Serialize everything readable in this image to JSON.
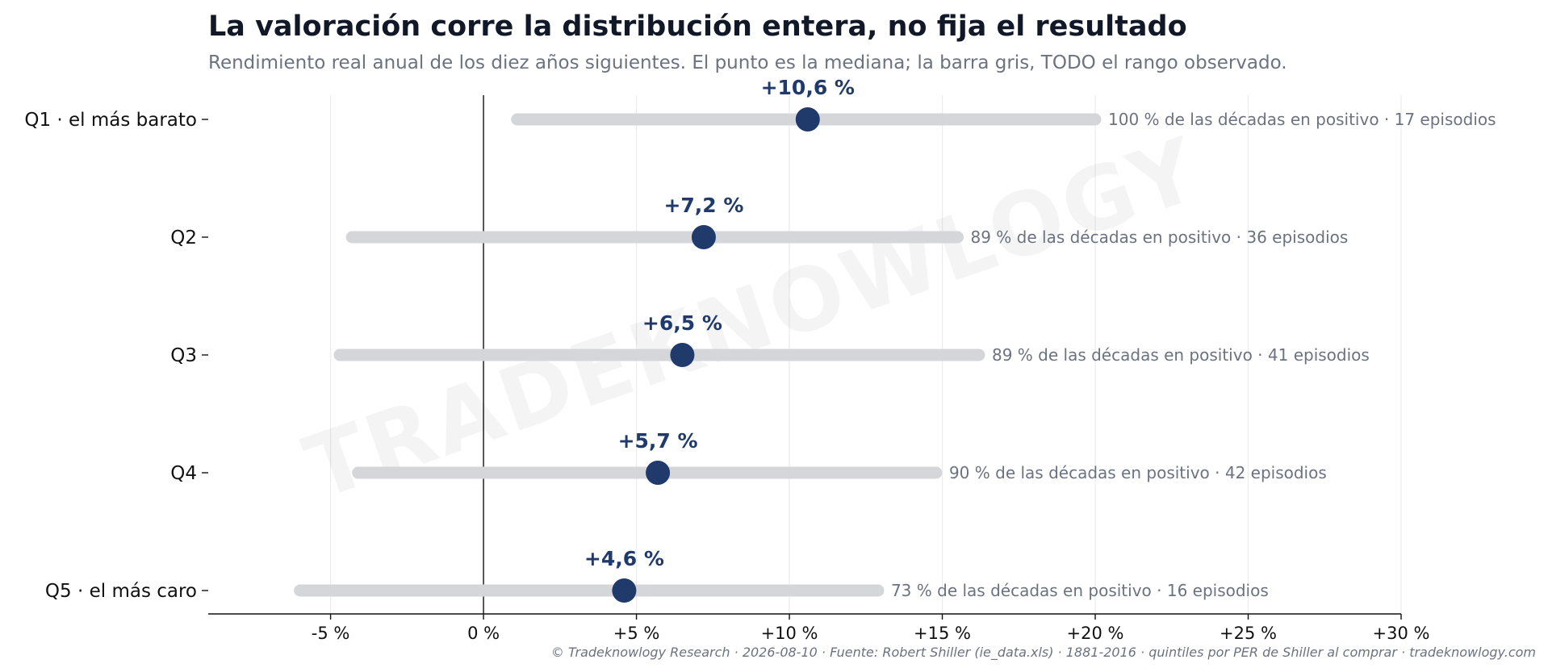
{
  "chart_data": {
    "type": "dot-range",
    "title": "La valoración corre la distribución entera, no fija el resultado",
    "subtitle": "Rendimiento real anual de los diez años siguientes. El punto es la mediana; la barra gris, TODO el rango observado.",
    "categories": [
      "Q1 · el más barato",
      "Q2",
      "Q3",
      "Q4",
      "Q5 · el más caro"
    ],
    "median": [
      10.6,
      7.2,
      6.5,
      5.7,
      4.6
    ],
    "median_labels": [
      "+10,6 %",
      "+7,2 %",
      "+6,5 %",
      "+5,7 %",
      "+4,6 %"
    ],
    "range_min": [
      1.1,
      -4.3,
      -4.7,
      -4.1,
      -6.0
    ],
    "range_max": [
      20.0,
      15.5,
      16.2,
      14.8,
      12.9
    ],
    "notes": [
      "100 % de las décadas en positivo · 17 episodios",
      "89 % de las décadas en positivo · 36 episodios",
      "89 % de las décadas en positivo · 41 episodios",
      "90 % de las décadas en positivo · 42 episodios",
      "73 % de las décadas en positivo · 16 episodios"
    ],
    "x_ticks": [
      -5,
      0,
      5,
      10,
      15,
      20,
      25,
      30
    ],
    "x_tick_labels": [
      "-5 %",
      "0 %",
      "+5 %",
      "+10 %",
      "+15 %",
      "+20 %",
      "+25 %",
      "+30 %"
    ],
    "xlim": [
      -9,
      30
    ],
    "reference_line_x": 0,
    "grid": "vertical",
    "colors": {
      "median_dot": "#1f3a6b",
      "range_bar": "#d5d6da",
      "grid": "#ececec",
      "reference_line": "#111111"
    }
  },
  "watermark": "TRADEKNOWLOGY",
  "footer": "© Tradeknowlogy Research   ·   2026-08-10   ·   Fuente: Robert Shiller (ie_data.xls) · 1881-2016 · quintiles por PER de Shiller al comprar   ·   tradeknowlogy.com"
}
